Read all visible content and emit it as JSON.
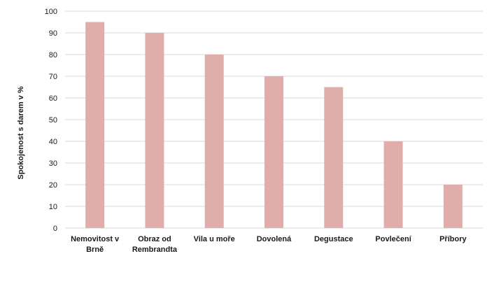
{
  "chart_data": {
    "type": "bar",
    "title": "",
    "xlabel": "",
    "ylabel": "Spokojenost s darem v %",
    "ylim": [
      0,
      100
    ],
    "yticks": [
      0,
      10,
      20,
      30,
      40,
      50,
      60,
      70,
      80,
      90,
      100
    ],
    "grid": true,
    "legend": "none",
    "bar_color": "#e0aeaa",
    "categories": [
      [
        "Nemovitost v",
        "Brně"
      ],
      [
        "Obraz od",
        "Rembrandta"
      ],
      [
        "Vila u moře"
      ],
      [
        "Dovolená"
      ],
      [
        "Degustace"
      ],
      [
        "Povlečení"
      ],
      [
        "Příbory"
      ]
    ],
    "values": [
      95,
      90,
      80,
      70,
      65,
      40,
      20
    ]
  }
}
